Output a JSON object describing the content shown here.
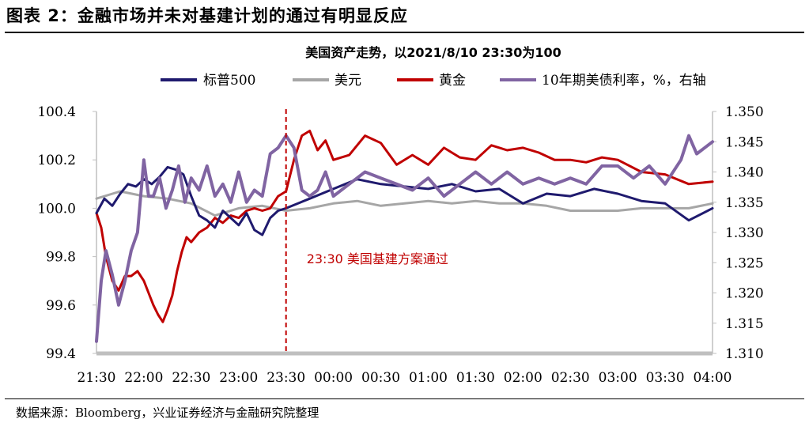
{
  "figure": {
    "title": "图表 2：金融市场并未对基建计划的通过有明显反应",
    "source": "数据来源：Bloomberg，兴业证券经济与金融研究院整理"
  },
  "chart_data": {
    "type": "line",
    "title": "美国资产走势，以2021/8/10 23:30为100",
    "categories": [
      "21:30",
      "22:00",
      "22:30",
      "23:00",
      "23:30",
      "00:00",
      "00:30",
      "01:00",
      "01:30",
      "02:00",
      "02:30",
      "03:00",
      "03:30",
      "04:00"
    ],
    "y_left": {
      "range": [
        99.4,
        100.4
      ],
      "ticks": [
        "99.4",
        "99.6",
        "99.8",
        "100.0",
        "100.2",
        "100.4"
      ]
    },
    "y_right": {
      "range": [
        1.31,
        1.35
      ],
      "ticks": [
        "1.310",
        "1.315",
        "1.320",
        "1.325",
        "1.330",
        "1.335",
        "1.340",
        "1.345",
        "1.350"
      ]
    },
    "grid": false,
    "legend_position": "top",
    "annotation": {
      "x": "23:30",
      "text": "23:30  美国基建方案通过",
      "color": "#c00000"
    },
    "series": [
      {
        "name": "标普500",
        "axis": "left",
        "color": "#1f1a6e",
        "x": [
          "21:30",
          "21:35",
          "21:40",
          "21:45",
          "21:50",
          "21:55",
          "22:00",
          "22:05",
          "22:10",
          "22:15",
          "22:20",
          "22:25",
          "22:30",
          "22:35",
          "22:40",
          "22:45",
          "22:50",
          "22:55",
          "23:00",
          "23:05",
          "23:10",
          "23:15",
          "23:20",
          "23:25",
          "23:30",
          "23:45",
          "00:00",
          "00:15",
          "00:30",
          "00:45",
          "01:00",
          "01:15",
          "01:30",
          "01:45",
          "02:00",
          "02:15",
          "02:30",
          "02:45",
          "03:00",
          "03:15",
          "03:30",
          "03:45",
          "04:00"
        ],
        "values": [
          99.98,
          100.04,
          100.01,
          100.06,
          100.1,
          100.09,
          100.12,
          100.1,
          100.13,
          100.17,
          100.16,
          100.14,
          100.05,
          99.97,
          99.95,
          99.92,
          99.99,
          99.96,
          99.93,
          99.98,
          99.91,
          99.89,
          99.96,
          99.99,
          100.0,
          100.04,
          100.08,
          100.12,
          100.1,
          100.09,
          100.08,
          100.1,
          100.07,
          100.08,
          100.02,
          100.06,
          100.05,
          100.08,
          100.06,
          100.03,
          100.02,
          99.95,
          100.0
        ]
      },
      {
        "name": "美元",
        "axis": "left",
        "color": "#a6a6a6",
        "x": [
          "21:30",
          "21:45",
          "22:00",
          "22:15",
          "22:30",
          "22:45",
          "23:00",
          "23:15",
          "23:30",
          "23:45",
          "00:00",
          "00:15",
          "00:30",
          "00:45",
          "01:00",
          "01:15",
          "01:30",
          "01:45",
          "02:00",
          "02:15",
          "02:30",
          "02:45",
          "03:00",
          "03:15",
          "03:30",
          "03:45",
          "04:00"
        ],
        "values": [
          100.04,
          100.07,
          100.05,
          100.04,
          100.02,
          99.97,
          100.0,
          100.01,
          99.99,
          100.0,
          100.02,
          100.03,
          100.01,
          100.02,
          100.03,
          100.02,
          100.03,
          100.02,
          100.02,
          100.01,
          99.99,
          99.99,
          99.99,
          100.0,
          100.0,
          100.0,
          100.02
        ]
      },
      {
        "name": "黄金",
        "axis": "left",
        "color": "#c00000",
        "x": [
          "21:30",
          "21:33",
          "21:36",
          "21:40",
          "21:44",
          "21:48",
          "21:52",
          "21:56",
          "22:00",
          "22:03",
          "22:06",
          "22:09",
          "22:12",
          "22:15",
          "22:18",
          "22:21",
          "22:24",
          "22:27",
          "22:30",
          "22:35",
          "22:40",
          "22:45",
          "22:50",
          "22:55",
          "23:00",
          "23:05",
          "23:10",
          "23:15",
          "23:20",
          "23:25",
          "23:30",
          "23:35",
          "23:40",
          "23:45",
          "23:50",
          "23:55",
          "00:00",
          "00:10",
          "00:20",
          "00:30",
          "00:40",
          "00:50",
          "01:00",
          "01:10",
          "01:20",
          "01:30",
          "01:40",
          "01:50",
          "02:00",
          "02:10",
          "02:20",
          "02:30",
          "02:40",
          "02:50",
          "03:00",
          "03:15",
          "03:30",
          "03:45",
          "04:00"
        ],
        "values": [
          99.98,
          99.92,
          99.8,
          99.7,
          99.66,
          99.72,
          99.72,
          99.74,
          99.7,
          99.65,
          99.6,
          99.56,
          99.53,
          99.58,
          99.64,
          99.74,
          99.82,
          99.88,
          99.86,
          99.9,
          99.92,
          99.96,
          99.94,
          99.97,
          99.96,
          99.99,
          100.0,
          99.99,
          100.0,
          100.05,
          100.07,
          100.2,
          100.3,
          100.32,
          100.24,
          100.28,
          100.2,
          100.22,
          100.3,
          100.27,
          100.18,
          100.22,
          100.18,
          100.25,
          100.21,
          100.2,
          100.26,
          100.24,
          100.25,
          100.23,
          100.2,
          100.2,
          100.19,
          100.21,
          100.2,
          100.15,
          100.14,
          100.1,
          100.11
        ]
      },
      {
        "name": "10年期美债利率，%，右轴",
        "axis": "right",
        "color": "#8064a2",
        "x": [
          "21:30",
          "21:33",
          "21:36",
          "21:40",
          "21:44",
          "21:48",
          "21:52",
          "21:56",
          "22:00",
          "22:03",
          "22:06",
          "22:10",
          "22:14",
          "22:18",
          "22:22",
          "22:26",
          "22:30",
          "22:35",
          "22:40",
          "22:45",
          "22:50",
          "22:55",
          "23:00",
          "23:05",
          "23:10",
          "23:15",
          "23:20",
          "23:25",
          "23:30",
          "23:35",
          "23:40",
          "23:45",
          "23:50",
          "23:55",
          "00:00",
          "00:10",
          "00:20",
          "00:30",
          "00:40",
          "00:50",
          "01:00",
          "01:10",
          "01:20",
          "01:30",
          "01:40",
          "01:50",
          "02:00",
          "02:10",
          "02:20",
          "02:30",
          "02:40",
          "02:50",
          "03:00",
          "03:10",
          "03:20",
          "03:30",
          "03:40",
          "03:45",
          "03:50",
          "04:00"
        ],
        "values": [
          1.312,
          1.322,
          1.327,
          1.323,
          1.318,
          1.322,
          1.327,
          1.33,
          1.342,
          1.336,
          1.336,
          1.339,
          1.334,
          1.337,
          1.341,
          1.335,
          1.339,
          1.337,
          1.341,
          1.336,
          1.338,
          1.335,
          1.34,
          1.335,
          1.337,
          1.336,
          1.343,
          1.344,
          1.346,
          1.344,
          1.337,
          1.336,
          1.337,
          1.34,
          1.336,
          1.338,
          1.34,
          1.339,
          1.338,
          1.337,
          1.339,
          1.336,
          1.338,
          1.34,
          1.338,
          1.34,
          1.338,
          1.339,
          1.338,
          1.339,
          1.338,
          1.341,
          1.341,
          1.339,
          1.341,
          1.338,
          1.342,
          1.346,
          1.343,
          1.345
        ]
      }
    ]
  }
}
